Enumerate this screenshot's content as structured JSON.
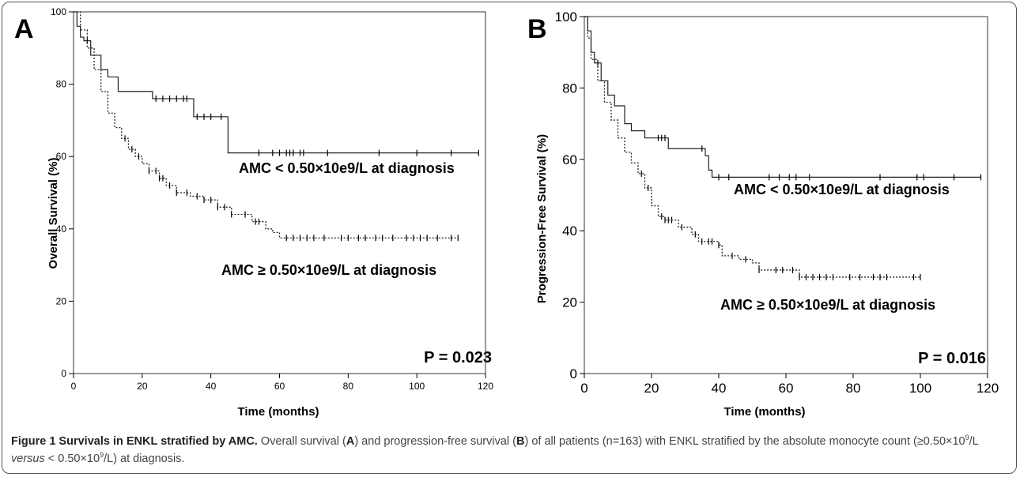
{
  "figure": {
    "caption_title": "Figure 1 Survivals in ENKL stratified by AMC.",
    "caption_parts": {
      "p1": " Overall survival (",
      "a": "A",
      "p2": ") and progression-free survival (",
      "b": "B",
      "p3": ") of all patients (n=163) with ENKL stratified by the absolute monocyte count (≥0.50×10",
      "sup1": "9",
      "p4": "/L ",
      "versus": "versus",
      "p5": " < 0.50×10",
      "sup2": "9",
      "p6": "/L) at diagnosis."
    }
  },
  "chart_data": [
    {
      "type": "line",
      "panel": "A",
      "xlabel": "Time (months)",
      "ylabel": "Overall Survival (%)",
      "xlim": [
        0,
        120
      ],
      "ylim": [
        0,
        100
      ],
      "xticks": [
        0,
        20,
        40,
        60,
        80,
        100,
        120
      ],
      "yticks": [
        0,
        20,
        40,
        60,
        80,
        100
      ],
      "pvalue": "P = 0.023",
      "grid": false,
      "series": [
        {
          "name": "AMC < 0.50×10e9/L at diagnosis",
          "line_style": "solid",
          "steps": [
            [
              0,
              100
            ],
            [
              1,
              96
            ],
            [
              2,
              93
            ],
            [
              3,
              92
            ],
            [
              5,
              88
            ],
            [
              8,
              84
            ],
            [
              10,
              82
            ],
            [
              13,
              78
            ],
            [
              23,
              76
            ],
            [
              35,
              71
            ],
            [
              45,
              61
            ],
            [
              118,
              61
            ]
          ],
          "censored": [
            4,
            24,
            26,
            28,
            30,
            32,
            33,
            36,
            38,
            40,
            43,
            54,
            58,
            60,
            62,
            63,
            64,
            66,
            67,
            74,
            89,
            100,
            110,
            118
          ]
        },
        {
          "name": "AMC ≥ 0.50×10e9/L at diagnosis",
          "line_style": "dotted",
          "steps": [
            [
              0,
              100
            ],
            [
              2,
              95
            ],
            [
              4,
              90
            ],
            [
              6,
              84
            ],
            [
              8,
              78
            ],
            [
              10,
              72
            ],
            [
              12,
              68
            ],
            [
              14,
              65
            ],
            [
              16,
              62
            ],
            [
              18,
              60
            ],
            [
              20,
              58
            ],
            [
              22,
              56
            ],
            [
              25,
              54
            ],
            [
              27,
              52
            ],
            [
              30,
              50
            ],
            [
              34,
              49
            ],
            [
              38,
              48
            ],
            [
              42,
              46
            ],
            [
              46,
              44
            ],
            [
              52,
              42
            ],
            [
              56,
              40
            ],
            [
              58,
              39
            ],
            [
              60,
              37.5
            ],
            [
              112,
              37.5
            ]
          ],
          "censored": [
            15,
            17,
            19,
            22,
            24,
            25,
            26,
            28,
            30,
            33,
            36,
            38,
            40,
            42,
            44,
            46,
            50,
            53,
            54,
            62,
            64,
            66,
            68,
            70,
            73,
            78,
            80,
            83,
            85,
            88,
            90,
            93,
            97,
            99,
            101,
            103,
            106,
            110,
            112
          ]
        }
      ]
    },
    {
      "type": "line",
      "panel": "B",
      "xlabel": "Time (months)",
      "ylabel": "Progression-Free Survival (%)",
      "xlim": [
        0,
        120
      ],
      "ylim": [
        0,
        100
      ],
      "xticks": [
        0,
        20,
        40,
        60,
        80,
        100,
        120
      ],
      "yticks": [
        0,
        20,
        40,
        60,
        80,
        100
      ],
      "pvalue": "P = 0.016",
      "grid": false,
      "series": [
        {
          "name": "AMC < 0.50×10e9/L at diagnosis",
          "line_style": "solid",
          "steps": [
            [
              0,
              100
            ],
            [
              1,
              96
            ],
            [
              2,
              90
            ],
            [
              3,
              87
            ],
            [
              5,
              82
            ],
            [
              7,
              78
            ],
            [
              9,
              75
            ],
            [
              12,
              70
            ],
            [
              14,
              68
            ],
            [
              18,
              66
            ],
            [
              25,
              63
            ],
            [
              36,
              61
            ],
            [
              37,
              57
            ],
            [
              38,
              55
            ],
            [
              118,
              55
            ]
          ],
          "censored": [
            4,
            22,
            23,
            24,
            35,
            40,
            43,
            55,
            58,
            61,
            63,
            67,
            88,
            99,
            101,
            110,
            118
          ]
        },
        {
          "name": "AMC ≥ 0.50×10e9/L at diagnosis",
          "line_style": "dotted",
          "steps": [
            [
              0,
              100
            ],
            [
              1,
              94
            ],
            [
              2,
              88
            ],
            [
              4,
              82
            ],
            [
              6,
              76
            ],
            [
              8,
              71
            ],
            [
              10,
              66
            ],
            [
              12,
              62
            ],
            [
              14,
              59
            ],
            [
              16,
              56
            ],
            [
              18,
              52
            ],
            [
              20,
              47
            ],
            [
              22,
              44
            ],
            [
              24,
              43
            ],
            [
              28,
              41
            ],
            [
              32,
              39
            ],
            [
              34,
              37
            ],
            [
              40,
              36
            ],
            [
              41,
              33
            ],
            [
              46,
              32
            ],
            [
              50,
              31
            ],
            [
              52,
              29
            ],
            [
              64,
              27
            ],
            [
              100,
              27
            ]
          ],
          "censored": [
            17,
            19,
            23,
            24,
            25,
            26,
            29,
            33,
            35,
            37,
            38,
            40,
            44,
            48,
            52,
            57,
            59,
            62,
            64,
            66,
            68,
            70,
            72,
            74,
            79,
            82,
            86,
            88,
            90,
            98,
            100
          ]
        }
      ]
    }
  ]
}
